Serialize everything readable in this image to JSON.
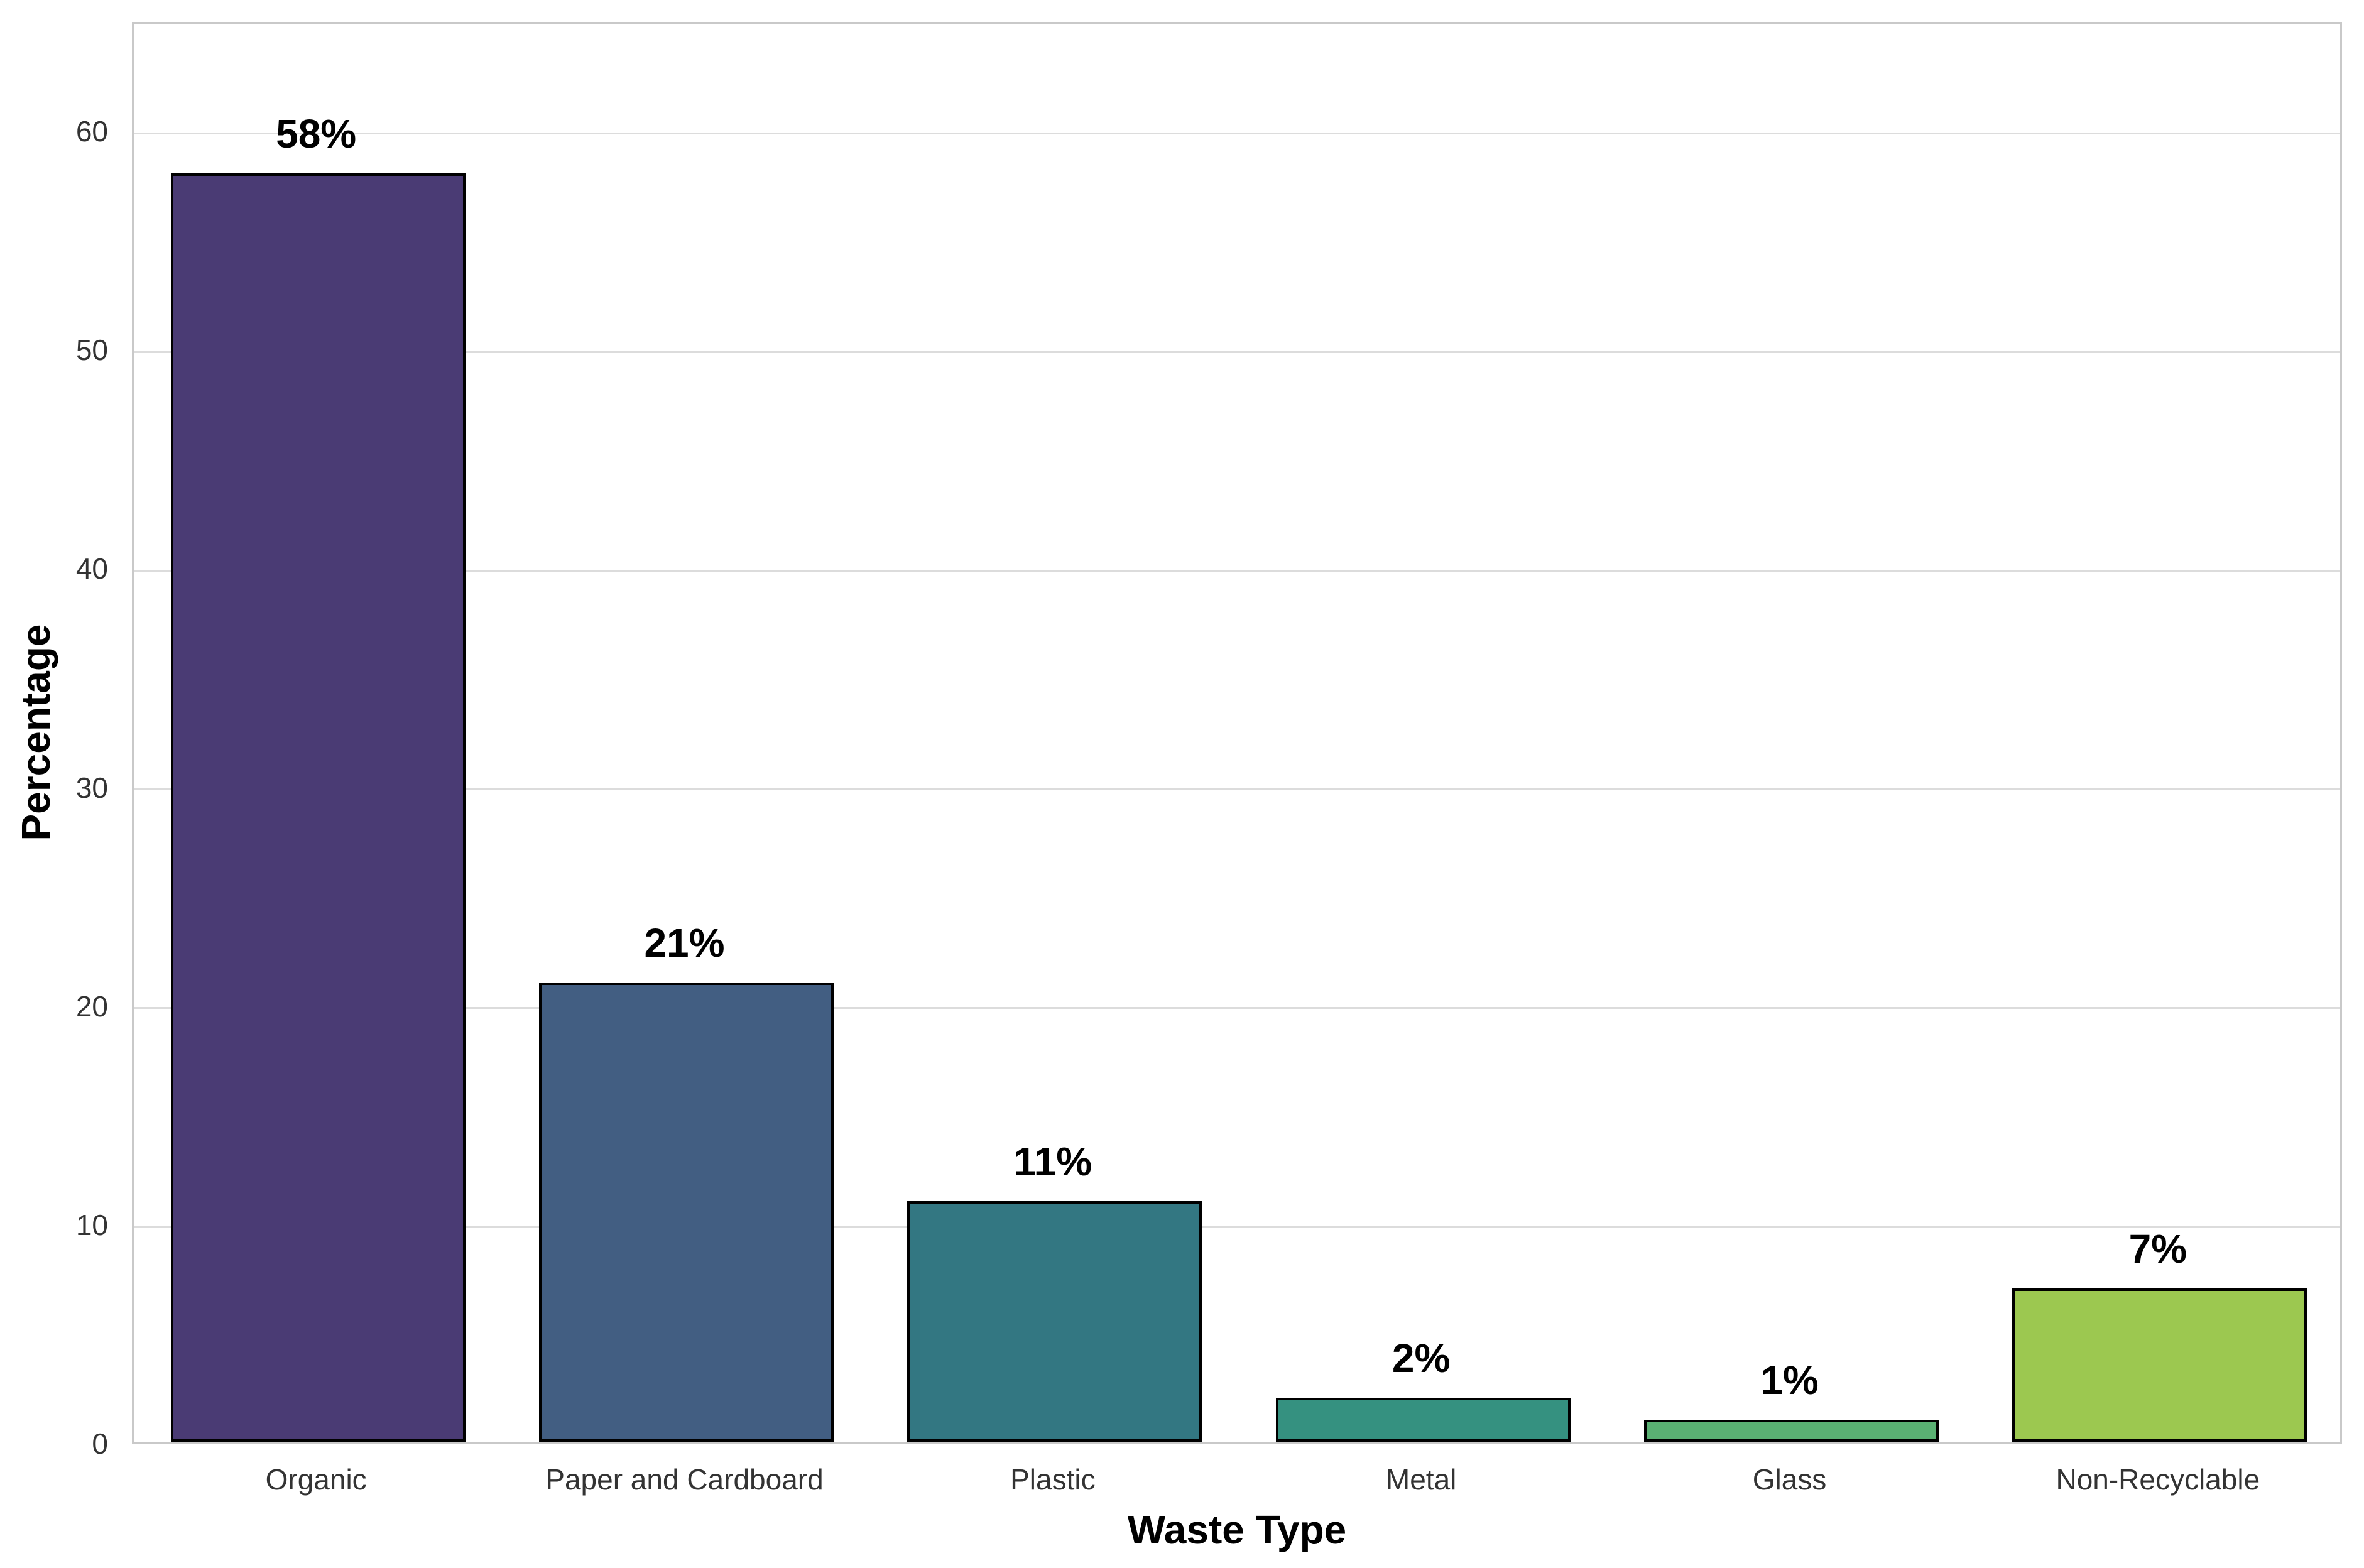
{
  "chart_data": {
    "type": "bar",
    "title": "",
    "categories": [
      "Organic",
      "Paper and Cardboard",
      "Plastic",
      "Metal",
      "Glass",
      "Non-Recyclable"
    ],
    "values": [
      58,
      21,
      11,
      2,
      1,
      7
    ],
    "bar_labels": [
      "58%",
      "21%",
      "11%",
      "2%",
      "1%",
      "7%"
    ],
    "bar_colors": [
      "#4a3b74",
      "#425e82",
      "#337782",
      "#359180",
      "#5ab173",
      "#9cc850"
    ],
    "bar_edge_color": "#000000",
    "xlabel": "Waste Type",
    "ylabel": "Percentage",
    "ylim": [
      0,
      65
    ],
    "yticks": [
      0,
      10,
      20,
      30,
      40,
      50,
      60
    ],
    "bar_width_fraction": 0.8,
    "grid": "horizontal",
    "grid_color": "#dcdcdc",
    "spine_color": "#c9c9c9",
    "background_color": "#ffffff",
    "legend": "none"
  }
}
